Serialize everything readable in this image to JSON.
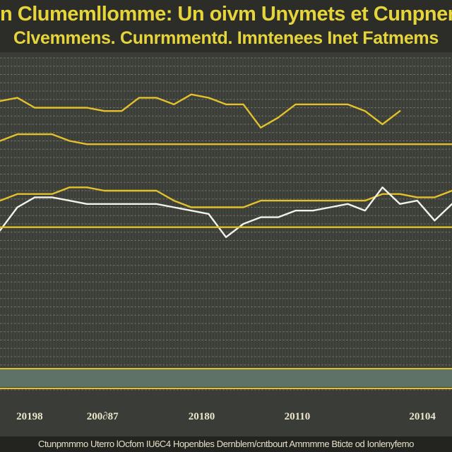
{
  "chart_data": {
    "type": "line",
    "title_line1": "n Clumemllomme: Un oivm Unymets et Cunpnemeny",
    "title_line2": "Clvemmens. Cunrmmentd. Imntenees Inet Fatmems",
    "x": [
      0,
      1,
      2,
      3,
      4,
      5,
      6,
      7,
      8,
      9,
      10,
      11,
      12,
      13,
      14,
      15,
      16,
      17,
      18,
      19,
      20,
      21,
      22,
      23,
      24,
      25,
      26
    ],
    "x_tick_labels": [
      {
        "label": "20198",
        "at": 1.7
      },
      {
        "label": "200∂87",
        "at": 5.9
      },
      {
        "label": "20180",
        "at": 11.6
      },
      {
        "label": "20110",
        "at": 17.1
      },
      {
        "label": "20104",
        "at": 24.3
      }
    ],
    "xlim": [
      0,
      26
    ],
    "ylim": [
      0,
      100
    ],
    "grid": true,
    "series": [
      {
        "color": "#e3c12a",
        "values": [
          87,
          88,
          85,
          85,
          85,
          85,
          84,
          84,
          88,
          88,
          86,
          89,
          88,
          86,
          86,
          79,
          82,
          86,
          86,
          86,
          86,
          84,
          80,
          84,
          null,
          null,
          null
        ]
      },
      {
        "color": "#e3c12a",
        "values": [
          75,
          77,
          77,
          77,
          75,
          74,
          74,
          74,
          74,
          74,
          74,
          74,
          74,
          74,
          74,
          74,
          74,
          74,
          74,
          74,
          74,
          74,
          74,
          74,
          74,
          74,
          74
        ]
      },
      {
        "color": "#e3c12a",
        "values": [
          57,
          59,
          59,
          59,
          61,
          61,
          60,
          60,
          60,
          60,
          57,
          55,
          55,
          55,
          55,
          57,
          57,
          57,
          57,
          57,
          57,
          57,
          59,
          59,
          58,
          58,
          60
        ]
      },
      {
        "color": "#f2f1ea",
        "values": [
          48,
          55,
          58,
          58,
          57,
          56,
          56,
          56,
          56,
          56,
          55,
          54,
          53,
          46,
          50,
          52,
          52,
          54,
          54,
          55,
          56,
          54,
          61,
          56,
          57,
          51,
          56
        ]
      },
      {
        "color": "#e3c12a",
        "values": [
          49,
          49,
          49,
          49,
          49,
          49,
          49,
          49,
          49,
          49,
          49,
          49,
          49,
          49,
          49,
          49,
          49,
          49,
          49,
          49,
          49,
          49,
          49,
          49,
          49,
          49,
          49
        ]
      }
    ],
    "legend": "none"
  },
  "footer": {
    "text": "Ctunpmmmo Uterro lOcfom IU6C4 Hopenbles Dernblem/cntbourt Ammmme Bticte od Ionlenyfemo"
  },
  "colors": {
    "background": "#3a3c37",
    "grid": "#6b6e66",
    "accent": "#e3c12a",
    "baseline_band": "#5e7268"
  }
}
